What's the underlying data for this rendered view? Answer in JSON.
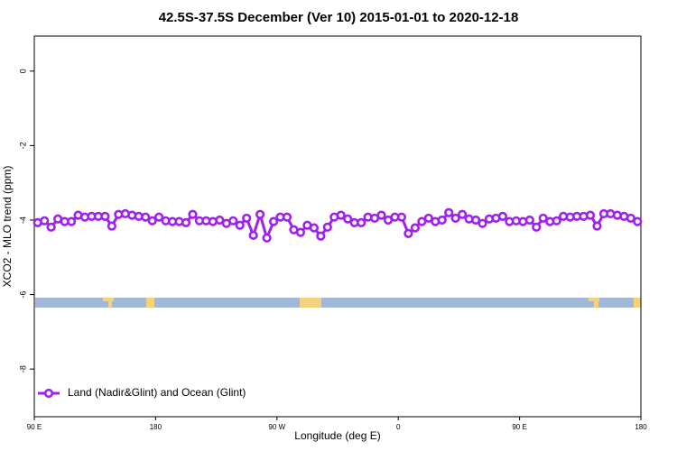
{
  "chart_data": {
    "type": "line",
    "title": "42.5S-37.5S December (Ver 10)   2015-01-01 to 2020-12-18",
    "x_label": "Longitude (deg E)",
    "y_label": "XCO2 - MLO trend (ppm)",
    "xlim": [
      90,
      540
    ],
    "xticks": [
      {
        "value": 90,
        "label": "90 E"
      },
      180,
      {
        "value": 270,
        "label": "90 W"
      },
      {
        "value": 360,
        "label": "0"
      },
      {
        "value": 450,
        "label": "90 E"
      },
      {
        "value": 540,
        "label": "180"
      }
    ],
    "ylim": [
      -9.28,
      0.94
    ],
    "yticks": [
      0,
      -2,
      -4,
      -6,
      -8
    ],
    "legend": "bottom-left",
    "x": [
      92.5,
      97.5,
      102.5,
      107.5,
      112.5,
      117.5,
      122.5,
      127.5,
      132.5,
      137.5,
      142.5,
      147.5,
      152.5,
      157.5,
      162.5,
      167.5,
      172.5,
      177.5,
      182.5,
      187.5,
      192.5,
      197.5,
      202.5,
      207.5,
      212.5,
      217.5,
      222.5,
      227.5,
      232.5,
      237.5,
      242.5,
      247.5,
      252.5,
      257.5,
      262.5,
      267.5,
      272.5,
      277.5,
      282.5,
      287.5,
      292.5,
      297.5,
      302.5,
      307.5,
      312.5,
      317.5,
      322.5,
      327.5,
      332.5,
      337.5,
      342.5,
      347.5,
      352.5,
      357.5,
      362.5,
      367.5,
      372.5,
      377.5,
      382.5,
      387.5,
      392.5,
      397.5,
      402.5,
      407.5,
      412.5,
      417.5,
      422.5,
      427.5,
      432.5,
      437.5,
      442.5,
      447.5,
      452.5,
      457.5,
      462.5,
      467.5,
      472.5,
      477.5,
      482.5,
      487.5,
      492.5,
      497.5,
      502.5,
      507.5,
      512.5,
      517.5,
      522.5,
      527.5,
      532.5,
      537.5
    ],
    "series": [
      {
        "name": "Land (Nadir&Glint) and Ocean (Glint)",
        "color": "#a020f0",
        "values": [
          -4.07,
          -4.02,
          -4.19,
          -3.97,
          -4.04,
          -4.04,
          -3.87,
          -3.92,
          -3.9,
          -3.9,
          -3.9,
          -4.16,
          -3.85,
          -3.83,
          -3.87,
          -3.9,
          -3.92,
          -4.02,
          -3.92,
          -4.02,
          -4.04,
          -4.04,
          -4.07,
          -3.85,
          -4.02,
          -4.02,
          -4.04,
          -4.0,
          -4.09,
          -4.02,
          -4.14,
          -3.95,
          -4.41,
          -3.85,
          -4.48,
          -4.04,
          -3.92,
          -3.92,
          -4.26,
          -4.33,
          -4.14,
          -4.21,
          -4.43,
          -4.19,
          -3.92,
          -3.87,
          -3.97,
          -4.07,
          -4.07,
          -3.92,
          -3.95,
          -3.87,
          -4.0,
          -3.92,
          -3.92,
          -4.36,
          -4.21,
          -4.04,
          -3.95,
          -4.04,
          -4.0,
          -3.8,
          -3.95,
          -3.85,
          -3.97,
          -4.0,
          -4.09,
          -3.97,
          -3.95,
          -3.9,
          -4.04,
          -4.02,
          -4.04,
          -4.0,
          -4.19,
          -3.95,
          -4.04,
          -4.02,
          -3.9,
          -3.92,
          -3.9,
          -3.9,
          -3.87,
          -4.16,
          -3.83,
          -3.83,
          -3.87,
          -3.9,
          -3.95,
          -4.04
        ]
      }
    ]
  }
}
